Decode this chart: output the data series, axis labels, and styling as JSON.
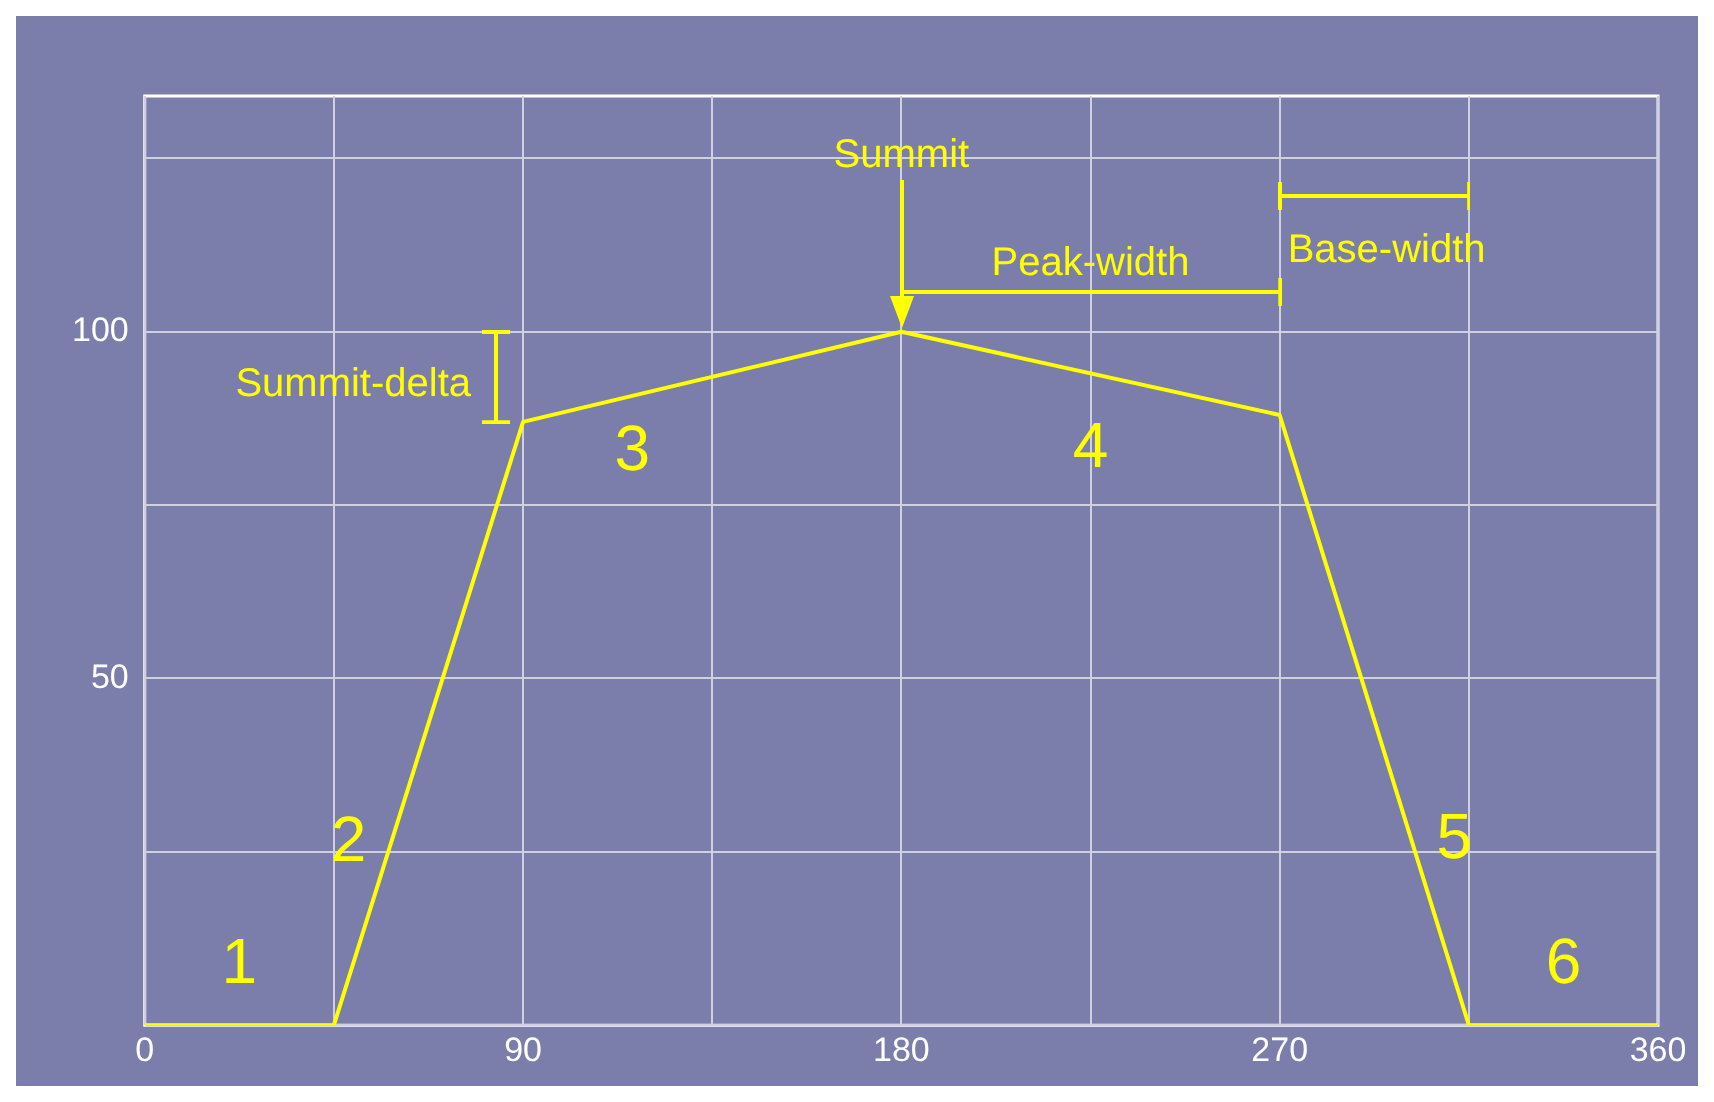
{
  "chart_data": {
    "type": "line",
    "x": [
      0,
      45,
      90,
      180,
      270,
      315,
      360
    ],
    "series": [
      {
        "color": "#ffff00",
        "values": [
          0,
          0,
          87,
          100,
          88,
          0,
          0
        ]
      }
    ],
    "xlim": [
      0,
      360
    ],
    "xticks": [
      0,
      {
        "value": 45,
        "label": null
      },
      90,
      {
        "value": 135,
        "label": null
      },
      180,
      {
        "value": 225,
        "label": null
      },
      270,
      {
        "value": 315,
        "label": null
      },
      360
    ],
    "ylim": [
      0,
      134
    ],
    "yticks": [
      {
        "value": 0,
        "label": null
      },
      {
        "value": 25,
        "label": null
      },
      50,
      {
        "value": 75,
        "label": null
      },
      100,
      {
        "value": 125,
        "label": null
      }
    ],
    "grid": true,
    "legend": false,
    "marker": "none",
    "line_style": "solid",
    "annotations": [
      "Summit",
      "Peak-width",
      "Base-width",
      "Summit-delta",
      "1",
      "2",
      "3",
      "4",
      "5",
      "6"
    ]
  }
}
